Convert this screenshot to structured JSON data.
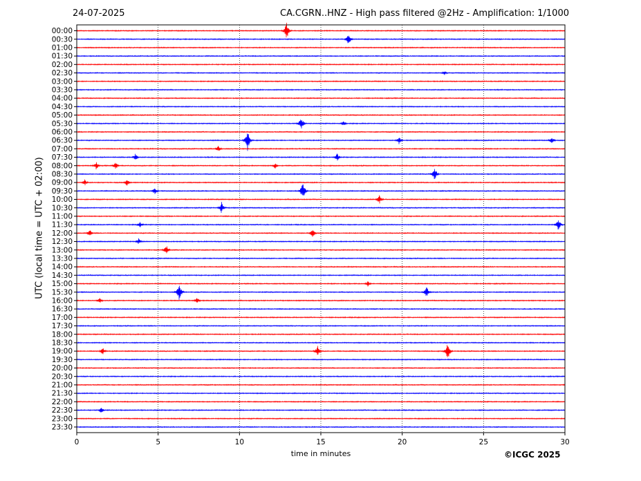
{
  "header": {
    "date": "24-07-2025",
    "title": "CA.CGRN..HNZ - High pass filtered @2Hz - Amplification: 1/1000"
  },
  "copyright": "©ICGC 2025",
  "colors": {
    "red_trace": "#ff0000",
    "blue_trace": "#0000ff",
    "grid": "#000000"
  },
  "chart_data": {
    "type": "line",
    "title": "CA.CGRN..HNZ - High pass filtered @2Hz - Amplification: 1/1000",
    "xlabel": "time in minutes",
    "ylabel": "UTC (local time = UTC + 02:00)",
    "xlim": [
      0,
      30
    ],
    "x_ticks": [
      "0",
      "5",
      "10",
      "15",
      "20",
      "25",
      "30"
    ],
    "grid": "vertical dotted lines at 5-minute intervals",
    "trace_color_order": [
      "red",
      "blue"
    ],
    "rows": [
      "00:00",
      "00:30",
      "01:00",
      "01:30",
      "02:00",
      "02:30",
      "03:00",
      "03:30",
      "04:00",
      "04:30",
      "05:00",
      "05:30",
      "06:00",
      "06:30",
      "07:00",
      "07:30",
      "08:00",
      "08:30",
      "09:00",
      "09:30",
      "10:00",
      "10:30",
      "11:00",
      "11:30",
      "12:00",
      "12:30",
      "13:00",
      "13:30",
      "14:00",
      "14:30",
      "15:00",
      "15:30",
      "16:00",
      "16:30",
      "17:00",
      "17:30",
      "18:00",
      "18:30",
      "19:00",
      "19:30",
      "20:00",
      "20:30",
      "21:00",
      "21:30",
      "22:00",
      "22:30",
      "23:00",
      "23:30"
    ],
    "events": [
      {
        "row": "00:00",
        "minute": 12.9,
        "amplitude": 14
      },
      {
        "row": "00:30",
        "minute": 16.7,
        "amplitude": 9
      },
      {
        "row": "02:30",
        "minute": 22.6,
        "amplitude": 4
      },
      {
        "row": "05:30",
        "minute": 13.8,
        "amplitude": 11
      },
      {
        "row": "05:30",
        "minute": 16.4,
        "amplitude": 5
      },
      {
        "row": "06:30",
        "minute": 10.5,
        "amplitude": 16
      },
      {
        "row": "06:30",
        "minute": 19.8,
        "amplitude": 6
      },
      {
        "row": "06:30",
        "minute": 29.2,
        "amplitude": 6
      },
      {
        "row": "07:00",
        "minute": 8.7,
        "amplitude": 5
      },
      {
        "row": "07:30",
        "minute": 3.6,
        "amplitude": 6
      },
      {
        "row": "07:30",
        "minute": 16.0,
        "amplitude": 6
      },
      {
        "row": "08:00",
        "minute": 1.2,
        "amplitude": 6
      },
      {
        "row": "08:00",
        "minute": 2.4,
        "amplitude": 6
      },
      {
        "row": "08:00",
        "minute": 12.2,
        "amplitude": 5
      },
      {
        "row": "08:30",
        "minute": 22.0,
        "amplitude": 10
      },
      {
        "row": "09:00",
        "minute": 0.5,
        "amplitude": 5
      },
      {
        "row": "09:00",
        "minute": 3.1,
        "amplitude": 6
      },
      {
        "row": "09:30",
        "minute": 13.9,
        "amplitude": 15
      },
      {
        "row": "09:30",
        "minute": 4.8,
        "amplitude": 6
      },
      {
        "row": "10:00",
        "minute": 18.6,
        "amplitude": 7
      },
      {
        "row": "10:30",
        "minute": 8.9,
        "amplitude": 9
      },
      {
        "row": "11:30",
        "minute": 3.9,
        "amplitude": 6
      },
      {
        "row": "11:30",
        "minute": 29.6,
        "amplitude": 9
      },
      {
        "row": "12:00",
        "minute": 0.8,
        "amplitude": 6
      },
      {
        "row": "12:00",
        "minute": 14.5,
        "amplitude": 7
      },
      {
        "row": "12:30",
        "minute": 3.8,
        "amplitude": 5
      },
      {
        "row": "13:00",
        "minute": 5.5,
        "amplitude": 8
      },
      {
        "row": "15:00",
        "minute": 17.9,
        "amplitude": 5
      },
      {
        "row": "15:30",
        "minute": 6.3,
        "amplitude": 14
      },
      {
        "row": "15:30",
        "minute": 21.5,
        "amplitude": 9
      },
      {
        "row": "16:00",
        "minute": 1.4,
        "amplitude": 5
      },
      {
        "row": "16:00",
        "minute": 7.4,
        "amplitude": 5
      },
      {
        "row": "19:00",
        "minute": 1.6,
        "amplitude": 6
      },
      {
        "row": "19:00",
        "minute": 14.8,
        "amplitude": 9
      },
      {
        "row": "19:00",
        "minute": 22.8,
        "amplitude": 14
      },
      {
        "row": "22:30",
        "minute": 1.5,
        "amplitude": 5
      }
    ]
  }
}
